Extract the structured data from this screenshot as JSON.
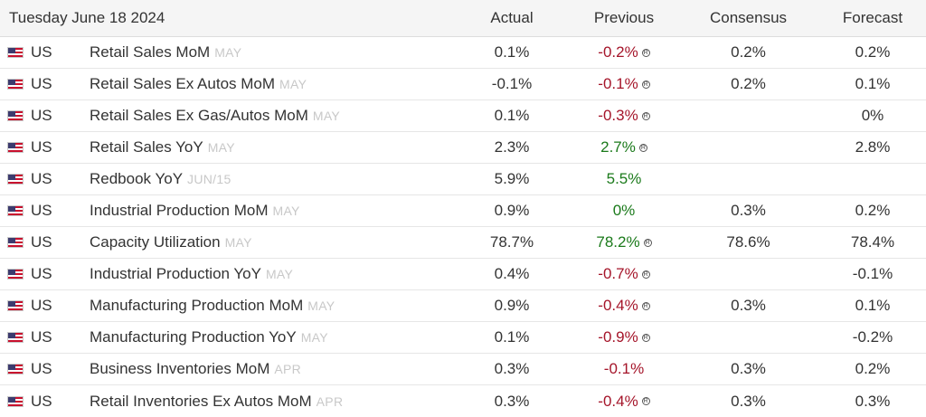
{
  "header": {
    "date": "Tuesday June 18 2024",
    "actual": "Actual",
    "previous": "Previous",
    "consensus": "Consensus",
    "forecast": "Forecast"
  },
  "colors": {
    "negative": "#a5152a",
    "positive": "#1b7a1b",
    "reference": "#c8c8c8",
    "header_bg": "#f5f5f5"
  },
  "revised_icon": "revised-icon",
  "revised_glyph": "R",
  "rows": [
    {
      "country": "US",
      "event": "Retail Sales MoM",
      "ref": "MAY",
      "actual": "0.1%",
      "previous": "-0.2%",
      "previous_trend": "neg",
      "revised": true,
      "consensus": "0.2%",
      "forecast": "0.2%"
    },
    {
      "country": "US",
      "event": "Retail Sales Ex Autos MoM",
      "ref": "MAY",
      "actual": "-0.1%",
      "previous": "-0.1%",
      "previous_trend": "neg",
      "revised": true,
      "consensus": "0.2%",
      "forecast": "0.1%"
    },
    {
      "country": "US",
      "event": "Retail Sales Ex Gas/Autos MoM",
      "ref": "MAY",
      "actual": "0.1%",
      "previous": "-0.3%",
      "previous_trend": "neg",
      "revised": true,
      "consensus": "",
      "forecast": "0%"
    },
    {
      "country": "US",
      "event": "Retail Sales YoY",
      "ref": "MAY",
      "actual": "2.3%",
      "previous": "2.7%",
      "previous_trend": "pos",
      "revised": true,
      "consensus": "",
      "forecast": "2.8%"
    },
    {
      "country": "US",
      "event": "Redbook YoY",
      "ref": "JUN/15",
      "actual": "5.9%",
      "previous": "5.5%",
      "previous_trend": "pos",
      "revised": false,
      "consensus": "",
      "forecast": ""
    },
    {
      "country": "US",
      "event": "Industrial Production MoM",
      "ref": "MAY",
      "actual": "0.9%",
      "previous": "0%",
      "previous_trend": "pos",
      "revised": false,
      "consensus": "0.3%",
      "forecast": "0.2%"
    },
    {
      "country": "US",
      "event": "Capacity Utilization",
      "ref": "MAY",
      "actual": "78.7%",
      "previous": "78.2%",
      "previous_trend": "pos",
      "revised": true,
      "consensus": "78.6%",
      "forecast": "78.4%"
    },
    {
      "country": "US",
      "event": "Industrial Production YoY",
      "ref": "MAY",
      "actual": "0.4%",
      "previous": "-0.7%",
      "previous_trend": "neg",
      "revised": true,
      "consensus": "",
      "forecast": "-0.1%"
    },
    {
      "country": "US",
      "event": "Manufacturing Production MoM",
      "ref": "MAY",
      "actual": "0.9%",
      "previous": "-0.4%",
      "previous_trend": "neg",
      "revised": true,
      "consensus": "0.3%",
      "forecast": "0.1%"
    },
    {
      "country": "US",
      "event": "Manufacturing Production YoY",
      "ref": "MAY",
      "actual": "0.1%",
      "previous": "-0.9%",
      "previous_trend": "neg",
      "revised": true,
      "consensus": "",
      "forecast": "-0.2%"
    },
    {
      "country": "US",
      "event": "Business Inventories MoM",
      "ref": "APR",
      "actual": "0.3%",
      "previous": "-0.1%",
      "previous_trend": "neg",
      "revised": false,
      "consensus": "0.3%",
      "forecast": "0.2%"
    },
    {
      "country": "US",
      "event": "Retail Inventories Ex Autos MoM",
      "ref": "APR",
      "actual": "0.3%",
      "previous": "-0.4%",
      "previous_trend": "neg",
      "revised": true,
      "consensus": "0.3%",
      "forecast": "0.3%"
    }
  ]
}
